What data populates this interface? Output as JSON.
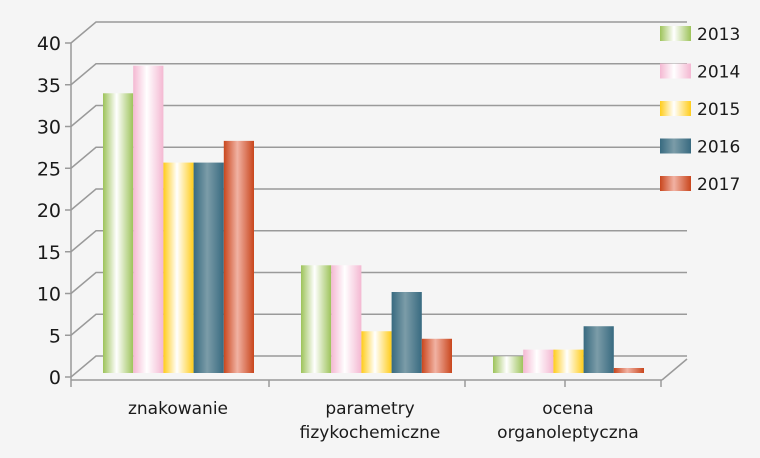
{
  "chart_data": {
    "type": "bar",
    "style": "3d-clustered-column",
    "title": "",
    "xlabel": "",
    "ylabel": "",
    "ylim": [
      0,
      40
    ],
    "yticks": [
      0,
      5,
      10,
      15,
      20,
      25,
      30,
      35,
      40
    ],
    "grid": true,
    "legend_position": "right-top",
    "categories": [
      [
        "znakowanie"
      ],
      [
        "parametry",
        "fizykochemiczne"
      ],
      [
        "ocena",
        "organoleptyczna"
      ]
    ],
    "series": [
      {
        "name": "2013",
        "color": "#9dc35a",
        "values": [
          33.5,
          12.9,
          2.0
        ]
      },
      {
        "name": "2014",
        "color": "#f4b8d2",
        "values": [
          36.8,
          12.9,
          2.8
        ]
      },
      {
        "name": "2015",
        "color": "#ffcc1a",
        "values": [
          25.2,
          5.0,
          2.8
        ]
      },
      {
        "name": "2016",
        "color": "#386a80",
        "values": [
          25.2,
          9.7,
          5.6
        ]
      },
      {
        "name": "2017",
        "color": "#c9461d",
        "values": [
          27.8,
          4.1,
          0.6
        ]
      }
    ]
  }
}
